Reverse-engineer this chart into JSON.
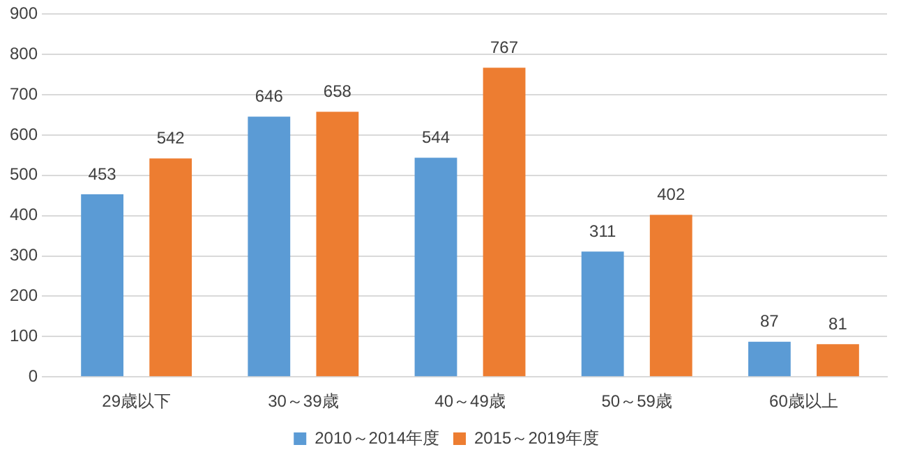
{
  "chart_data": {
    "type": "bar",
    "categories": [
      "29歳以下",
      "30～39歳",
      "40～49歳",
      "50～59歳",
      "60歳以上"
    ],
    "series": [
      {
        "name": "2010～2014年度",
        "color": "#5b9bd5",
        "values": [
          453,
          646,
          544,
          311,
          87
        ]
      },
      {
        "name": "2015～2019年度",
        "color": "#ed7d31",
        "values": [
          542,
          658,
          767,
          402,
          81
        ]
      }
    ],
    "ylim": [
      0,
      900
    ],
    "yticks": [
      0,
      100,
      200,
      300,
      400,
      500,
      600,
      700,
      800,
      900
    ],
    "grid": "y",
    "legend": "bottom",
    "data_labels": true
  }
}
